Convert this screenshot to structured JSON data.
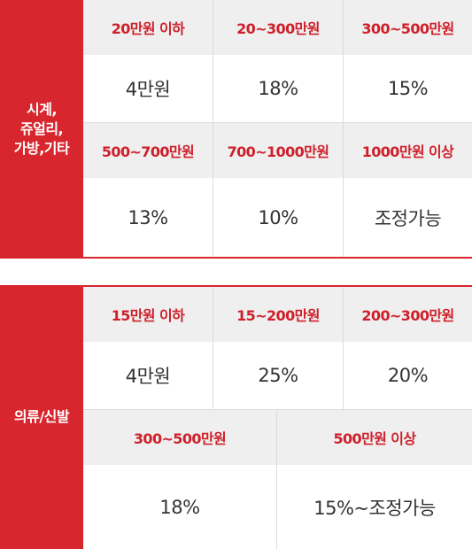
{
  "section1": {
    "category": "시계,\n쥬얼리,\n가방,기타",
    "row1": [
      {
        "range": "20만원 이하",
        "rate": "4만원"
      },
      {
        "range": "20~300만원",
        "rate": "18%"
      },
      {
        "range": "300~500만원",
        "rate": "15%"
      }
    ],
    "row2": [
      {
        "range": "500~700만원",
        "rate": "13%"
      },
      {
        "range": "700~1000만원",
        "rate": "10%"
      },
      {
        "range": "1000만원 이상",
        "rate": "조정가능"
      }
    ]
  },
  "section2": {
    "category": "의류/신발",
    "row1": [
      {
        "range": "15만원 이하",
        "rate": "4만원"
      },
      {
        "range": "15~200만원",
        "rate": "25%"
      },
      {
        "range": "200~300만원",
        "rate": "20%"
      }
    ],
    "row2": [
      {
        "range": "300~500만원",
        "rate": "18%"
      },
      {
        "range": "500만원 이상",
        "rate": "15%~조정가능"
      }
    ]
  },
  "colors": {
    "accent": "#d8262e",
    "header_bg": "#efefef",
    "text": "#333333"
  }
}
